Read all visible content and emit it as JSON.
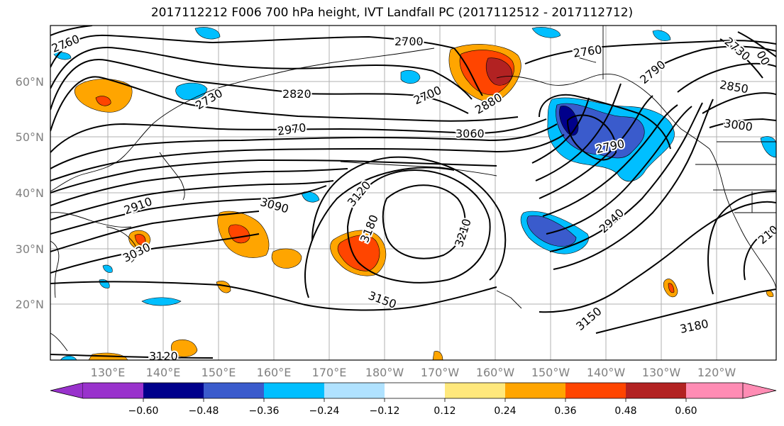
{
  "title": "2017112212 F006 700 hPa height, IVT Landfall PC (2017112512 - 2017112712)",
  "lat_labels": [
    "60°N",
    "50°N",
    "40°N",
    "30°N",
    "20°N"
  ],
  "lon_labels": [
    "130°E",
    "140°E",
    "150°E",
    "160°E",
    "170°E",
    "180°W",
    "170°W",
    "160°W",
    "150°W",
    "140°W",
    "130°W",
    "120°W"
  ],
  "contour_labels": [
    "2760",
    "2700",
    "2760",
    "2790",
    "2730",
    "00",
    "2730",
    "2820",
    "2700",
    "2880",
    "2850",
    "2970",
    "3060",
    "3000",
    "2790",
    "2910",
    "3120",
    "3090",
    "3180",
    "3210",
    "2940",
    "3030",
    "210",
    "3150",
    "3150",
    "3180",
    "3120"
  ],
  "colorbar": {
    "ticks": [
      "−0.60",
      "−0.48",
      "−0.36",
      "−0.24",
      "−0.12",
      "0.12",
      "0.24",
      "0.36",
      "0.48",
      "0.60"
    ],
    "colors": [
      "#9932CC",
      "#00008B",
      "#3A5BCC",
      "#00BFFF",
      "#B0E2FF",
      "#FFFFFF",
      "#FFE87C",
      "#FFA500",
      "#FF4500",
      "#B22222",
      "#FF8CB4"
    ]
  }
}
